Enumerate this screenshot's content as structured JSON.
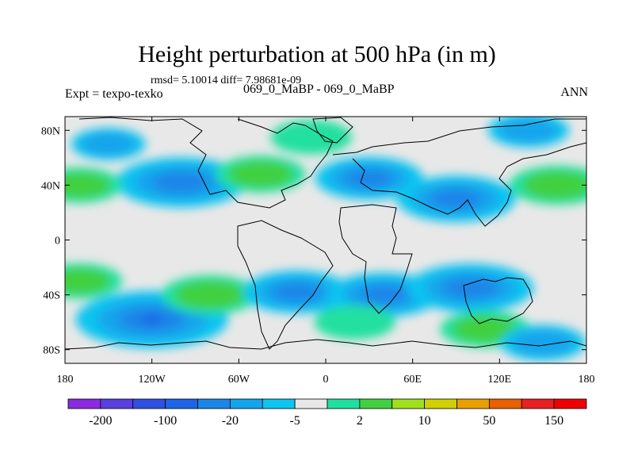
{
  "chart_data": {
    "type": "heatmap",
    "title": "Height perturbation at 500 hPa (in m)",
    "stats_text": "rmsd= 5.10014 diff= 7.98681e-09",
    "left_label": "Expt = texpo-texko",
    "center_label": "069_0_MaBP - 069_0_MaBP",
    "right_label": "ANN",
    "xlabel": "",
    "ylabel": "",
    "xlim": [
      -180,
      180
    ],
    "ylim": [
      -90,
      90
    ],
    "x_ticks": [
      {
        "value": -180,
        "label": "180"
      },
      {
        "value": -120,
        "label": "120W"
      },
      {
        "value": -60,
        "label": "60W"
      },
      {
        "value": 0,
        "label": "0"
      },
      {
        "value": 60,
        "label": "60E"
      },
      {
        "value": 120,
        "label": "120E"
      },
      {
        "value": 180,
        "label": "180"
      }
    ],
    "y_ticks": [
      {
        "value": 80,
        "label": "80N"
      },
      {
        "value": 40,
        "label": "40N"
      },
      {
        "value": 0,
        "label": "0"
      },
      {
        "value": -40,
        "label": "40S"
      },
      {
        "value": -80,
        "label": "80S"
      }
    ],
    "colorbar": {
      "colors": [
        "#8a2be2",
        "#5a3fe0",
        "#2f50e0",
        "#1e64e6",
        "#1b86e8",
        "#12a4ec",
        "#0ec4f0",
        "#e8e8e8",
        "#20e0a0",
        "#40d040",
        "#a0e020",
        "#d0d000",
        "#e8a000",
        "#e86000",
        "#e82020",
        "#f00000"
      ],
      "tick_labels": [
        "-200",
        "-100",
        "-20",
        "-5",
        "2",
        "10",
        "50",
        "150"
      ]
    },
    "anomalies": [
      {
        "lon": -100,
        "lat": 42,
        "value": -30
      },
      {
        "lon": -45,
        "lat": 48,
        "value": 12
      },
      {
        "lon": -170,
        "lat": 40,
        "value": 10
      },
      {
        "lon": -150,
        "lat": 70,
        "value": -5
      },
      {
        "lon": -10,
        "lat": 75,
        "value": 8
      },
      {
        "lon": 30,
        "lat": 45,
        "value": -20
      },
      {
        "lon": 90,
        "lat": 30,
        "value": -25
      },
      {
        "lon": 160,
        "lat": 40,
        "value": 15
      },
      {
        "lon": 140,
        "lat": 80,
        "value": -8
      },
      {
        "lon": -120,
        "lat": -58,
        "value": -40
      },
      {
        "lon": -80,
        "lat": -40,
        "value": 15
      },
      {
        "lon": -20,
        "lat": -38,
        "value": -20
      },
      {
        "lon": 40,
        "lat": -40,
        "value": -22
      },
      {
        "lon": 100,
        "lat": -35,
        "value": -28
      },
      {
        "lon": 110,
        "lat": -65,
        "value": 12
      },
      {
        "lon": 150,
        "lat": -75,
        "value": -10
      },
      {
        "lon": -170,
        "lat": -30,
        "value": 10
      },
      {
        "lon": 20,
        "lat": -60,
        "value": 8
      }
    ]
  }
}
